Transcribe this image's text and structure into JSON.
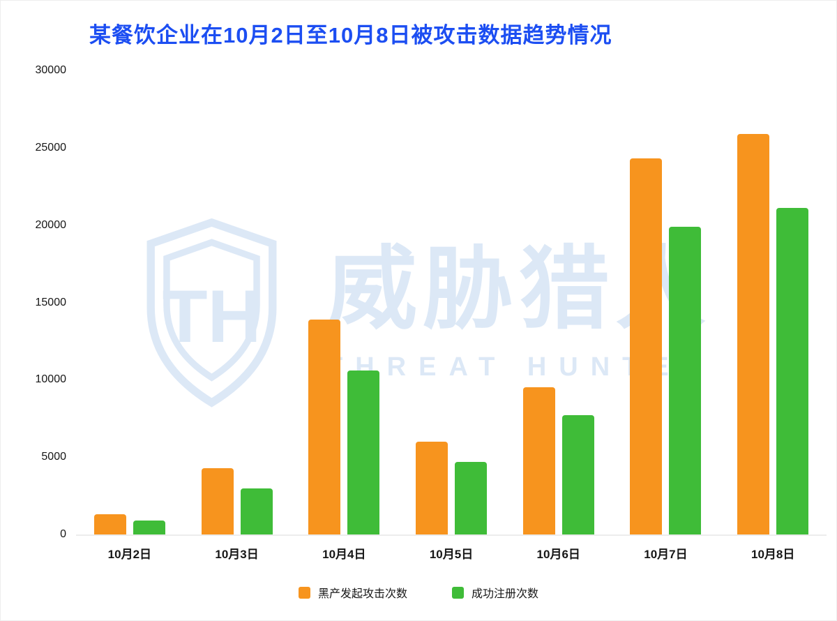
{
  "title": "某餐饮企业在10月2日至10月8日被攻击数据趋势情况",
  "watermark": {
    "logo_monogram": "TH",
    "cn": "威胁猎人",
    "en": "THREAT HUNTER"
  },
  "colors": {
    "title": "#1C4EF2",
    "watermark": "#DCE8F6",
    "axis_text": "#161616",
    "baseline": "#ECECEC",
    "orange": "#F7941E",
    "green": "#3FBC38"
  },
  "chart_data": {
    "type": "bar",
    "title": "某餐饮企业在10月2日至10月8日被攻击数据趋势情况",
    "categories": [
      "10月2日",
      "10月3日",
      "10月4日",
      "10月5日",
      "10月6日",
      "10月7日",
      "10月8日"
    ],
    "series": [
      {
        "name": "黑产发起攻击次数",
        "color": "#F7941E",
        "values": [
          1300,
          4300,
          13900,
          6000,
          9500,
          24300,
          25900
        ]
      },
      {
        "name": "成功注册次数",
        "color": "#3FBC38",
        "values": [
          900,
          3000,
          10600,
          4700,
          7700,
          19900,
          21100
        ]
      }
    ],
    "xlabel": "",
    "ylabel": "",
    "ylim": [
      0,
      30000
    ],
    "yticks": [
      0,
      5000,
      10000,
      15000,
      20000,
      25000,
      30000
    ],
    "grid": false,
    "legend_position": "bottom"
  }
}
